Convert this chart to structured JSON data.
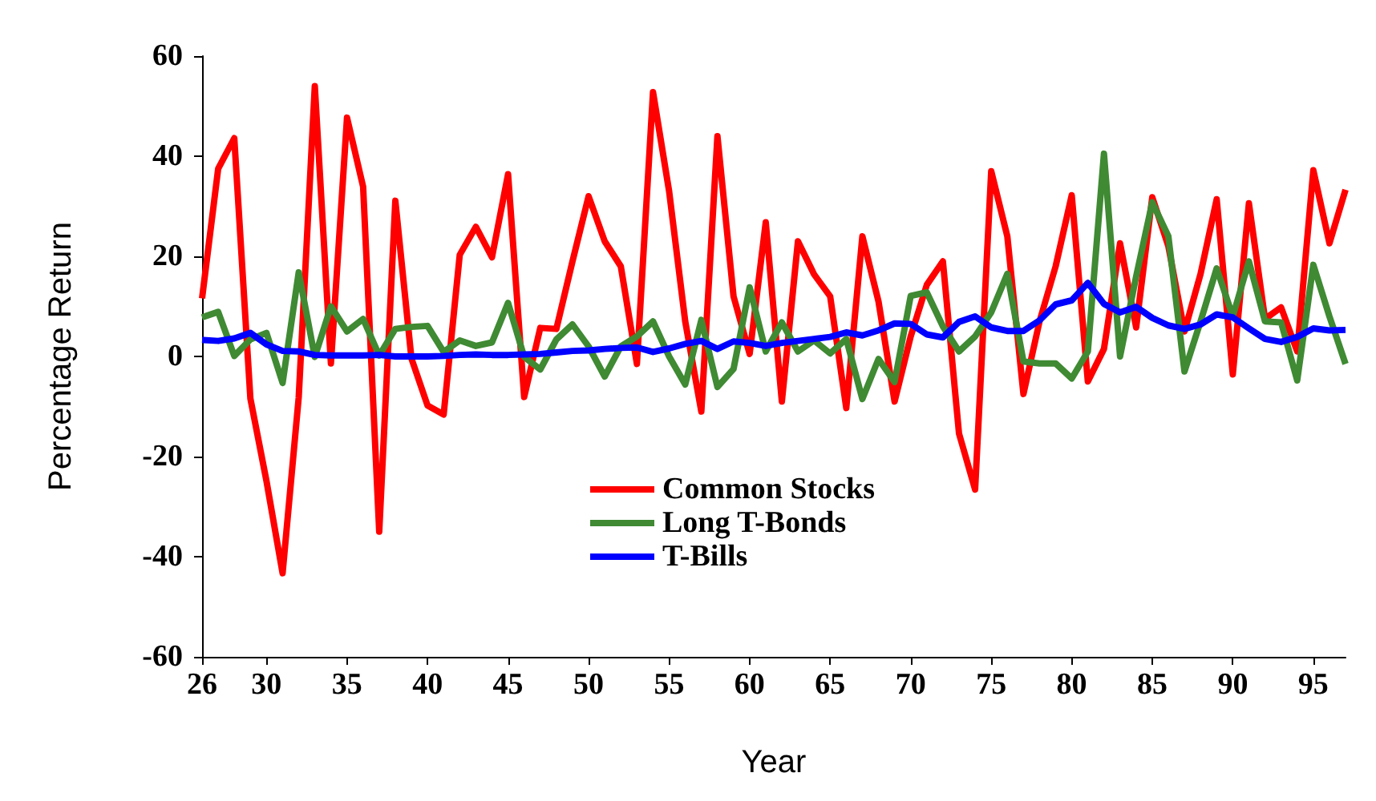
{
  "chart_data": {
    "type": "line",
    "xlabel": "Year",
    "ylabel": "Percentage Return",
    "x": [
      26,
      27,
      28,
      29,
      30,
      31,
      32,
      33,
      34,
      35,
      36,
      37,
      38,
      39,
      40,
      41,
      42,
      43,
      44,
      45,
      46,
      47,
      48,
      49,
      50,
      51,
      52,
      53,
      54,
      55,
      56,
      57,
      58,
      59,
      60,
      61,
      62,
      63,
      64,
      65,
      66,
      67,
      68,
      69,
      70,
      71,
      72,
      73,
      74,
      75,
      76,
      77,
      78,
      79,
      80,
      81,
      82,
      83,
      84,
      85,
      86,
      87,
      88,
      89,
      90,
      91,
      92,
      93,
      94,
      95,
      96,
      97
    ],
    "series": [
      {
        "name": "Common Stocks",
        "color": "#ff0000",
        "values": [
          11.6,
          37.5,
          43.6,
          -8.4,
          -24.9,
          -43.3,
          -8.2,
          54.0,
          -1.4,
          47.7,
          33.9,
          -35.0,
          31.1,
          -0.4,
          -9.8,
          -11.6,
          20.3,
          25.9,
          19.8,
          36.4,
          -8.1,
          5.7,
          5.5,
          19,
          32,
          23,
          18,
          -1.5,
          52.8,
          33,
          7,
          -11,
          44,
          12,
          0.5,
          26.8,
          -9,
          23,
          16.4,
          12,
          -10.3,
          24,
          11,
          -9,
          4,
          14.3,
          19,
          -15.4,
          -26.6,
          37,
          24,
          -7.5,
          7,
          18,
          32.2,
          -5,
          1.5,
          22.6,
          5.8,
          31.8,
          22,
          5,
          16.5,
          31.4,
          -3.6,
          30.6,
          7.5,
          9.8,
          1,
          37.2,
          22.6,
          33.3
        ]
      },
      {
        "name": "Long T-Bonds",
        "color": "#3f8a33",
        "values": [
          7.8,
          8.9,
          0.1,
          3.4,
          4.7,
          -5.3,
          16.8,
          -0.1,
          10.0,
          5.0,
          7.5,
          0.2,
          5.5,
          5.9,
          6.1,
          0.9,
          3.2,
          2.1,
          2.8,
          10.7,
          -0.1,
          -2.6,
          3.4,
          6.4,
          2,
          -4,
          2,
          4,
          7,
          0,
          -5.6,
          7.3,
          -6.1,
          -2.5,
          13.8,
          1,
          6.8,
          1,
          3.2,
          0.6,
          3.5,
          -8.5,
          -0.5,
          -5.1,
          12.1,
          12.8,
          6,
          1,
          4,
          8.8,
          16.5,
          -1,
          -1.4,
          -1.4,
          -4.4,
          1,
          40.5,
          0,
          16,
          30.8,
          24,
          -3,
          7,
          17.6,
          8,
          19,
          7,
          6.8,
          -4.8,
          18.3,
          8,
          -1.5
        ]
      },
      {
        "name": "T-Bills",
        "color": "#0000ff",
        "values": [
          3.3,
          3.1,
          3.6,
          4.7,
          2.4,
          1.1,
          1.0,
          0.3,
          0.2,
          0.2,
          0.2,
          0.3,
          0.0,
          0.0,
          0.0,
          0.1,
          0.3,
          0.4,
          0.3,
          0.3,
          0.4,
          0.5,
          0.8,
          1.1,
          1.2,
          1.5,
          1.7,
          1.8,
          0.9,
          1.6,
          2.5,
          3.1,
          1.5,
          3.0,
          2.7,
          2.1,
          2.7,
          3.1,
          3.5,
          3.9,
          4.8,
          4.2,
          5.2,
          6.6,
          6.5,
          4.4,
          3.8,
          6.9,
          8.0,
          5.8,
          5.1,
          5.1,
          7.2,
          10.4,
          11.2,
          14.7,
          10.5,
          8.8,
          9.9,
          7.7,
          6.2,
          5.5,
          6.4,
          8.4,
          7.8,
          5.6,
          3.5,
          2.9,
          3.9,
          5.6,
          5.2,
          5.3
        ]
      }
    ],
    "xlim": [
      26,
      97
    ],
    "xticks": [
      26,
      30,
      35,
      40,
      45,
      50,
      55,
      60,
      65,
      70,
      75,
      80,
      85,
      90,
      95
    ],
    "ylim": [
      -60,
      60
    ],
    "yticks": [
      -60,
      -40,
      -20,
      0,
      20,
      40,
      60
    ],
    "grid": false,
    "legend": "bottom",
    "marker": "none",
    "line_style": "solid"
  }
}
